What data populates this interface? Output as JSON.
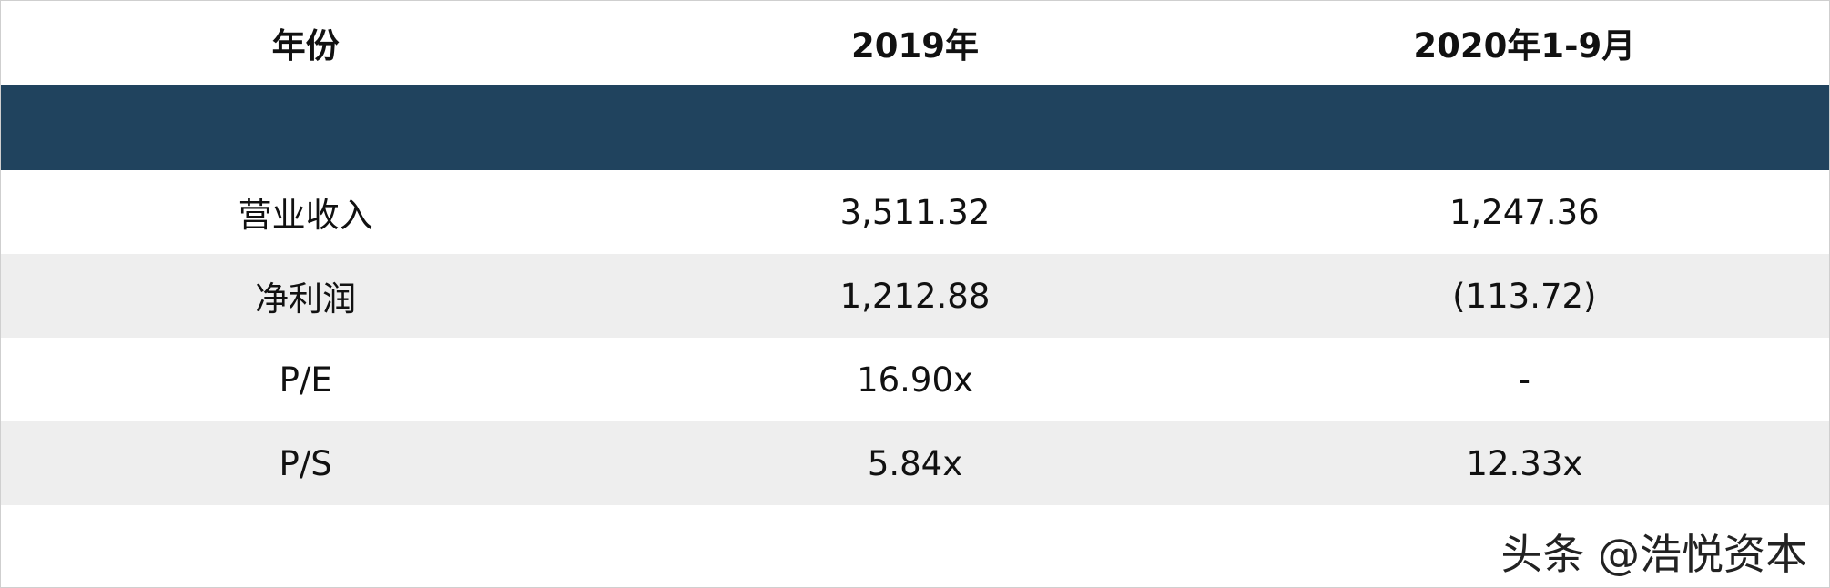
{
  "table": {
    "header": [
      "年份",
      "2019年",
      "2020年1-9月"
    ],
    "rows": [
      [
        "营业收入",
        "3,511.32",
        "1,247.36"
      ],
      [
        "净利润",
        "1,212.88",
        "(113.72)"
      ],
      [
        "P/E",
        "16.90x",
        "-"
      ],
      [
        "P/S",
        "5.84x",
        "12.33x"
      ]
    ]
  },
  "watermark": "头条 @浩悦资本"
}
